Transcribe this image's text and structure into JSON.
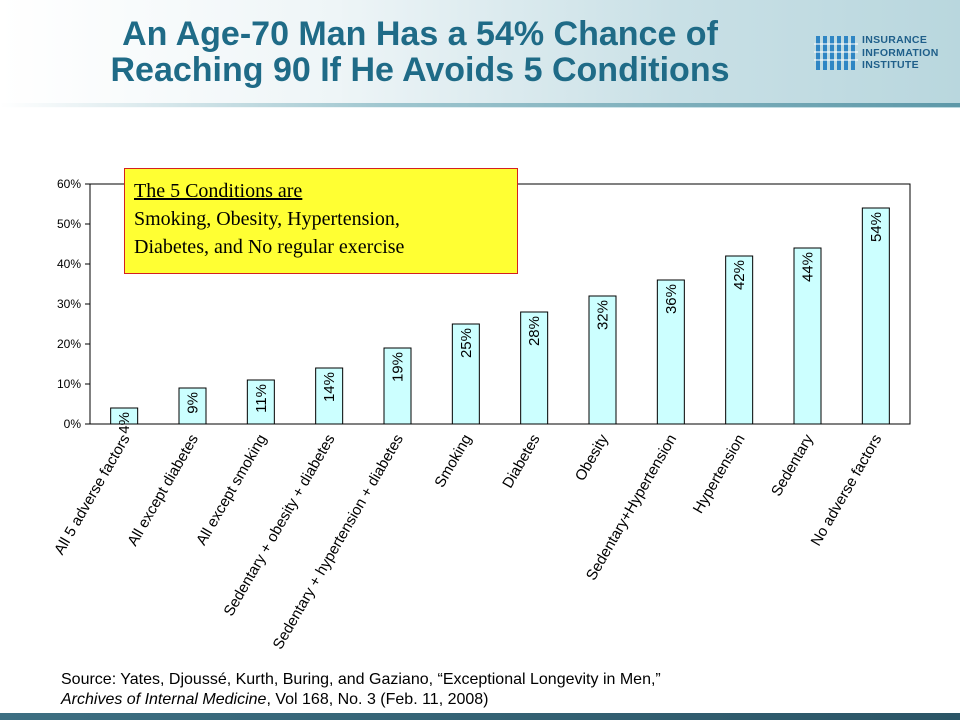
{
  "header": {
    "title_line1": "An Age-70 Man Has a 54% Chance of",
    "title_line2": "Reaching 90 If He Avoids 5 Conditions"
  },
  "logo": {
    "line1": "INSURANCE",
    "line2": "INFORMATION",
    "line3": "INSTITUTE"
  },
  "callout": {
    "title": "The 5 Conditions are",
    "line1": "Smoking, Obesity, Hypertension,",
    "line2": "Diabetes, and No regular exercise"
  },
  "source": {
    "line1": "Source: Yates, Djoussé, Kurth, Buring, and Gaziano, “Exceptional Longevity in Men,”",
    "line2_italic": "Archives of Internal Medicine",
    "line2_rest": ", Vol 168, No. 3 (Feb. 11, 2008)"
  },
  "colors": {
    "title": "#1f6b87",
    "bar_fill": "#ccffff",
    "bar_stroke": "#000000",
    "callout_fill": "#ffff33",
    "callout_border": "#d42020"
  },
  "chart_data": {
    "type": "bar",
    "categories": [
      "All 5 adverse factors",
      "All except diabetes",
      "All except smoking",
      "Sedentary + obesity + diabetes",
      "Sedentary + hypertension + diabetes",
      "Smoking",
      "Diabetes",
      "Obesity",
      "Sedentary+Hypertension",
      "Hypertension",
      "Sedentary",
      "No adverse factors"
    ],
    "values": [
      4,
      9,
      11,
      14,
      19,
      25,
      28,
      32,
      36,
      42,
      44,
      54
    ],
    "data_labels": [
      "4%",
      "9%",
      "11%",
      "14%",
      "19%",
      "25%",
      "28%",
      "32%",
      "36%",
      "42%",
      "44%",
      "54%"
    ],
    "yticks": [
      "0%",
      "10%",
      "20%",
      "30%",
      "40%",
      "50%",
      "60%"
    ],
    "ytick_values": [
      0,
      10,
      20,
      30,
      40,
      50,
      60
    ],
    "ylim": [
      0,
      60
    ],
    "grid": false,
    "legend": "none"
  }
}
